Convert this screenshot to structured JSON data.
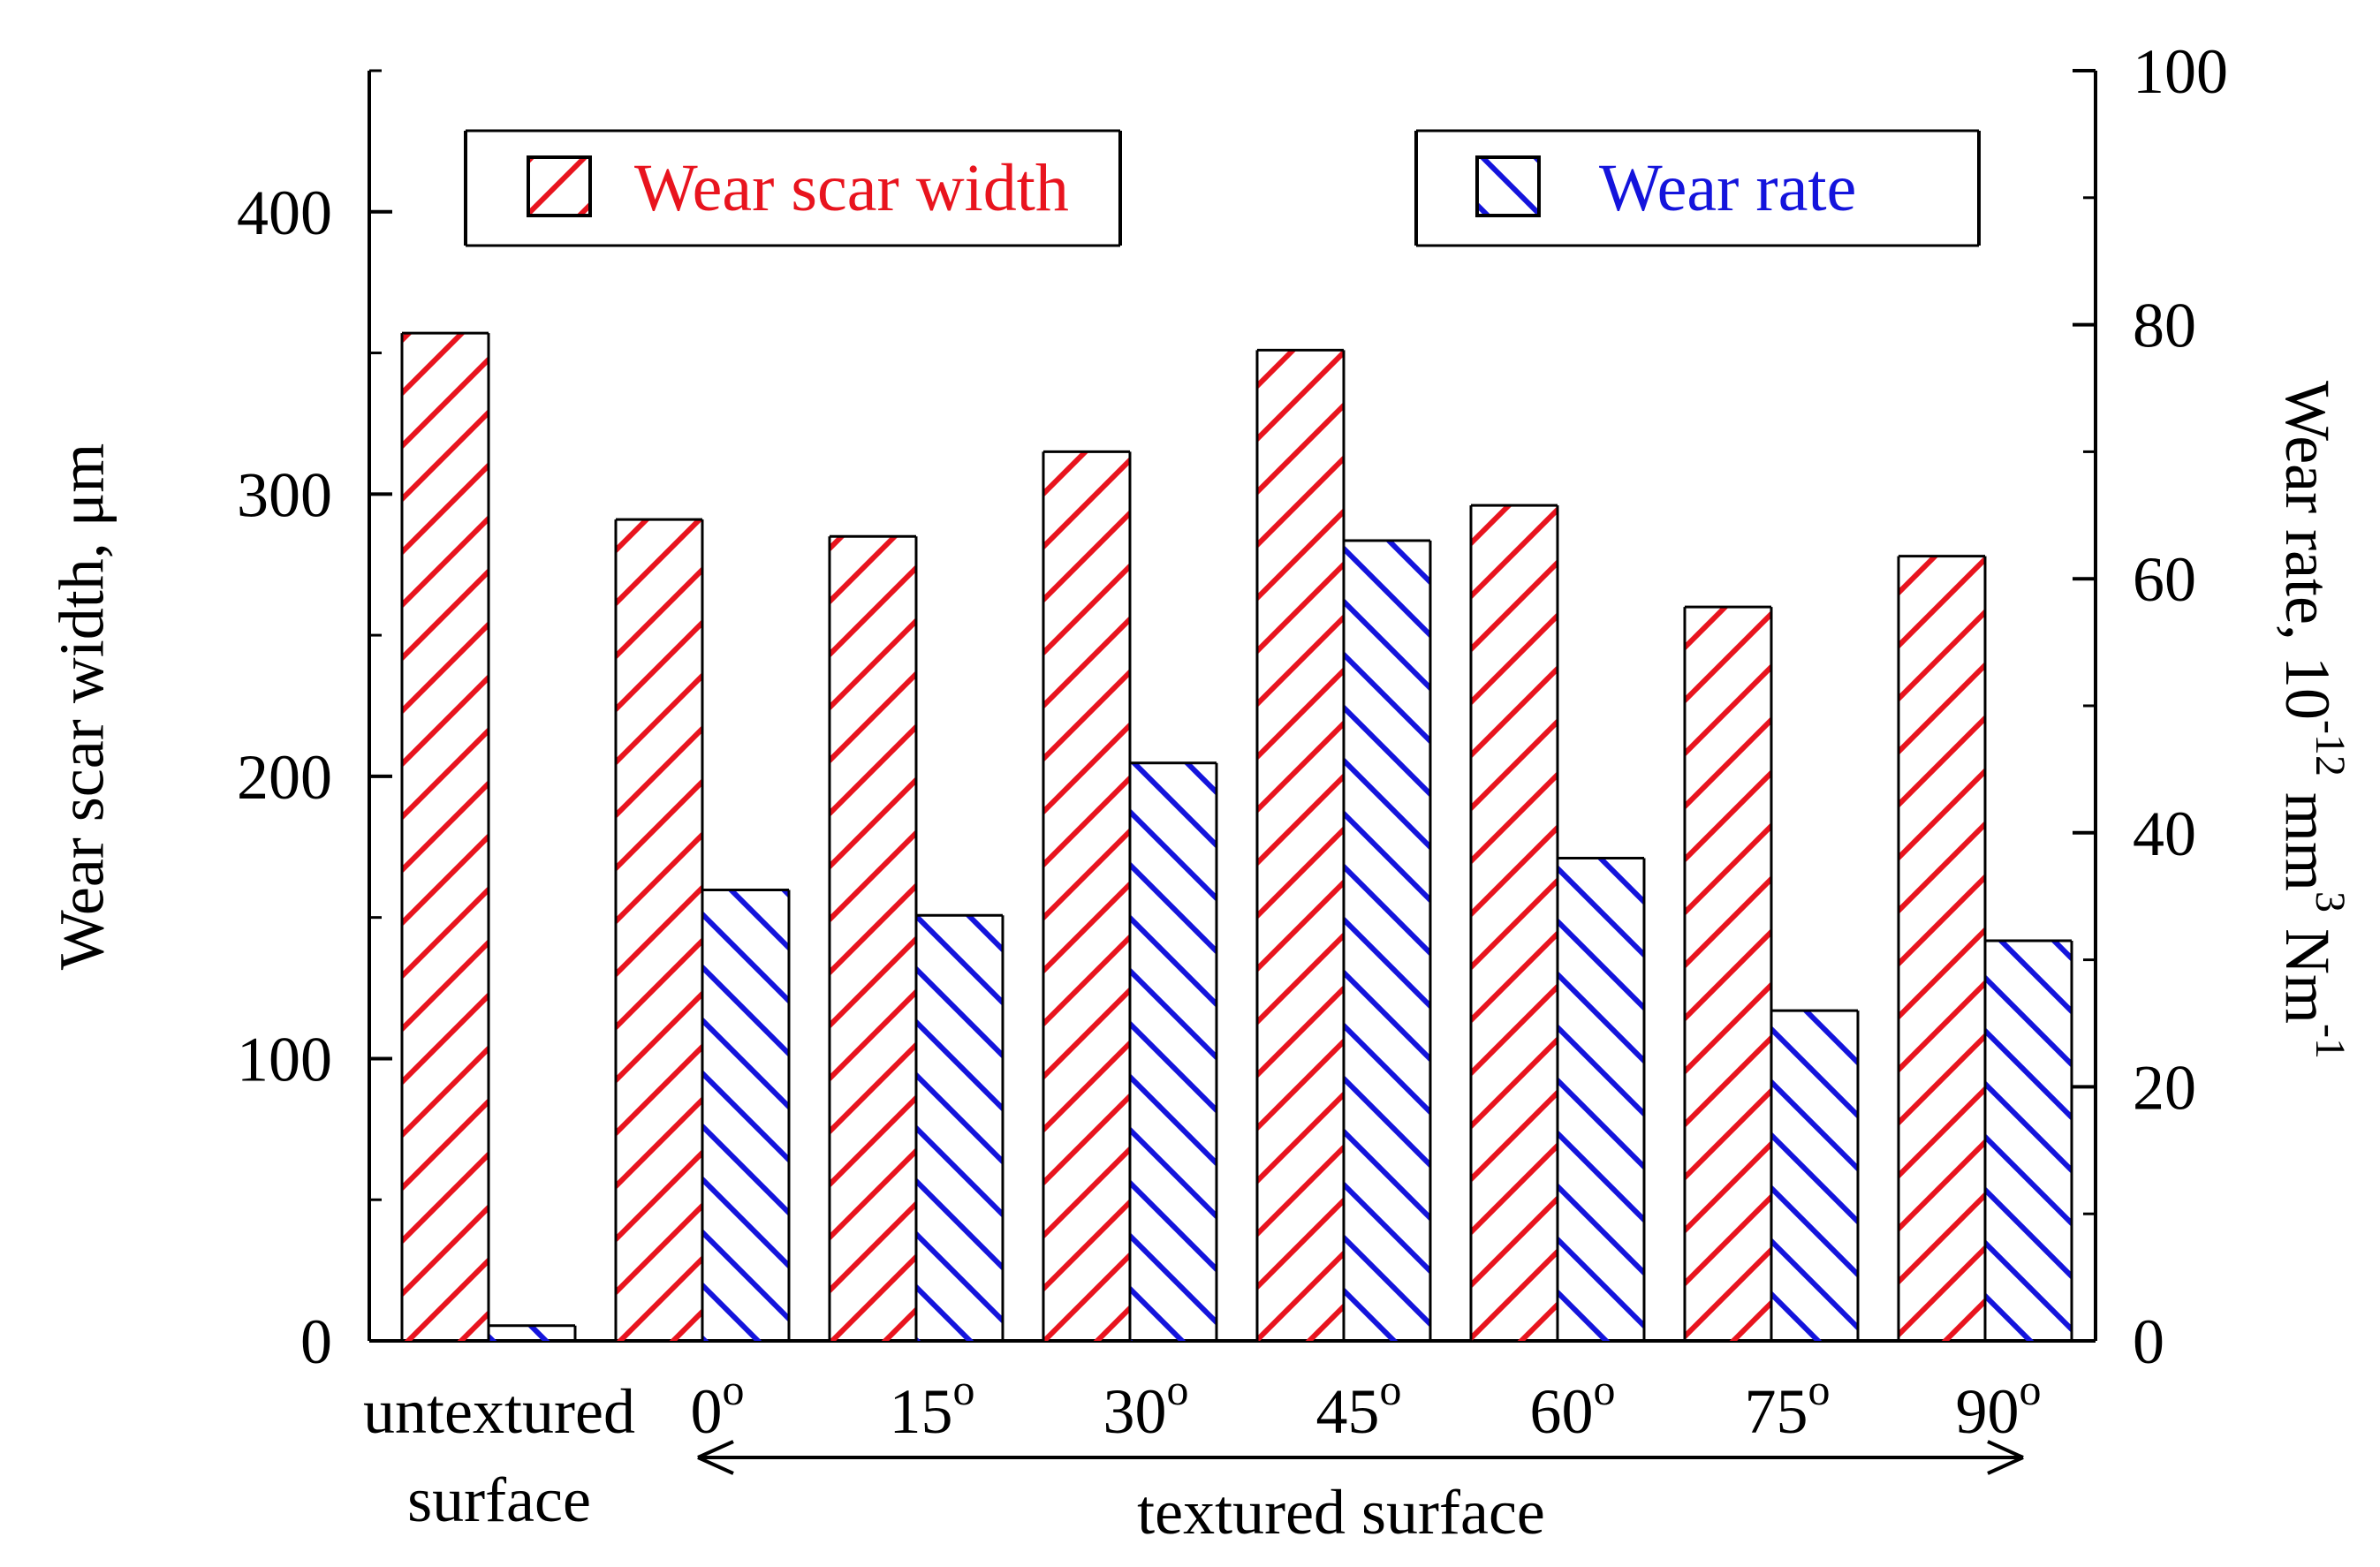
{
  "chart_data": {
    "type": "bar",
    "title": "",
    "categories": [
      "untextured surface",
      "0°",
      "15°",
      "30°",
      "45°",
      "60°",
      "75°",
      "90°"
    ],
    "category_labels": [
      {
        "main": "untextured",
        "sub": "surface"
      },
      {
        "main": "0",
        "sup": "o"
      },
      {
        "main": "15",
        "sup": "o"
      },
      {
        "main": "30",
        "sup": "o"
      },
      {
        "main": "45",
        "sup": "o"
      },
      {
        "main": "60",
        "sup": "o"
      },
      {
        "main": "75",
        "sup": "o"
      },
      {
        "main": "90",
        "sup": "o"
      }
    ],
    "series": [
      {
        "name": "Wear scar width",
        "axis": "left",
        "color": "#e8141e",
        "hatch": "forward",
        "values": [
          357,
          291,
          285,
          315,
          351,
          296,
          260,
          278
        ]
      },
      {
        "name": "Wear rate",
        "axis": "right",
        "color": "#1414dc",
        "hatch": "backward",
        "values": [
          1.2,
          35.5,
          33.5,
          45.5,
          63,
          38,
          26,
          31.5
        ]
      }
    ],
    "ylabel": "Wear scar width, μm",
    "ylabel_right": {
      "base": "Wear rate, 10",
      "exp1": "-12",
      "mid": " mm",
      "exp2": "3",
      "unit": " Nm",
      "exp3": "-1"
    },
    "ylim": [
      0,
      450
    ],
    "ylim_right": [
      0,
      100
    ],
    "yticks": [
      0,
      100,
      200,
      300,
      400
    ],
    "yticks_right": [
      0,
      20,
      40,
      60,
      80,
      100
    ],
    "xgroup_label": "textured surface",
    "legend_position": "top",
    "grid": false
  }
}
